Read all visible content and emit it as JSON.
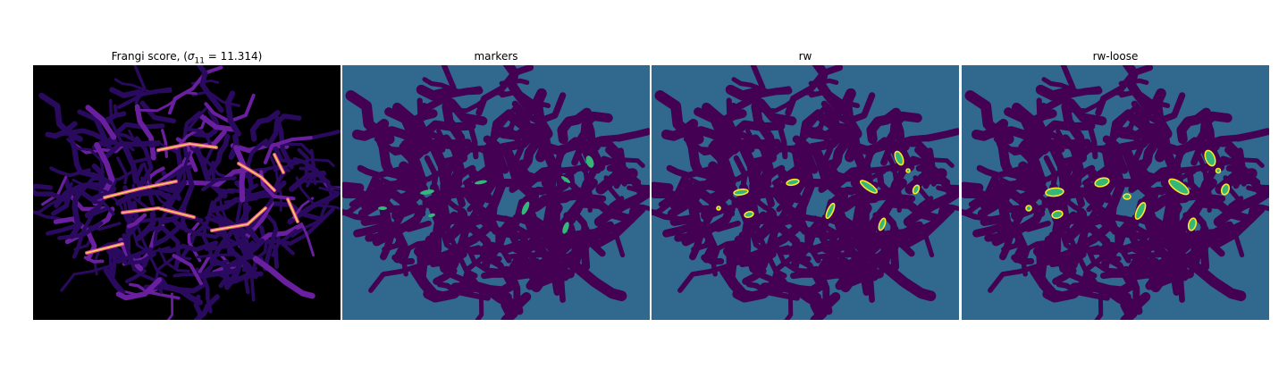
{
  "figure": {
    "panels": [
      {
        "id": "frangi",
        "title_prefix": "Frangi score, (",
        "title_sigma": "σ",
        "title_sub": "11",
        "title_suffix": " = 11.314)"
      },
      {
        "id": "markers",
        "title": "markers"
      },
      {
        "id": "rw",
        "title": "rw"
      },
      {
        "id": "rw-loose",
        "title": "rw-loose"
      }
    ]
  },
  "colors": {
    "frangi_background": "#000000",
    "frangi_low": "#2a0a5e",
    "frangi_mid": "#6a1fa0",
    "frangi_high": "#e0508a",
    "frangi_peak": "#fcd25a",
    "label_background": "#31688e",
    "label_tissue": "#440154",
    "label_marker": "#35b779",
    "label_vessel": "#fde725"
  }
}
